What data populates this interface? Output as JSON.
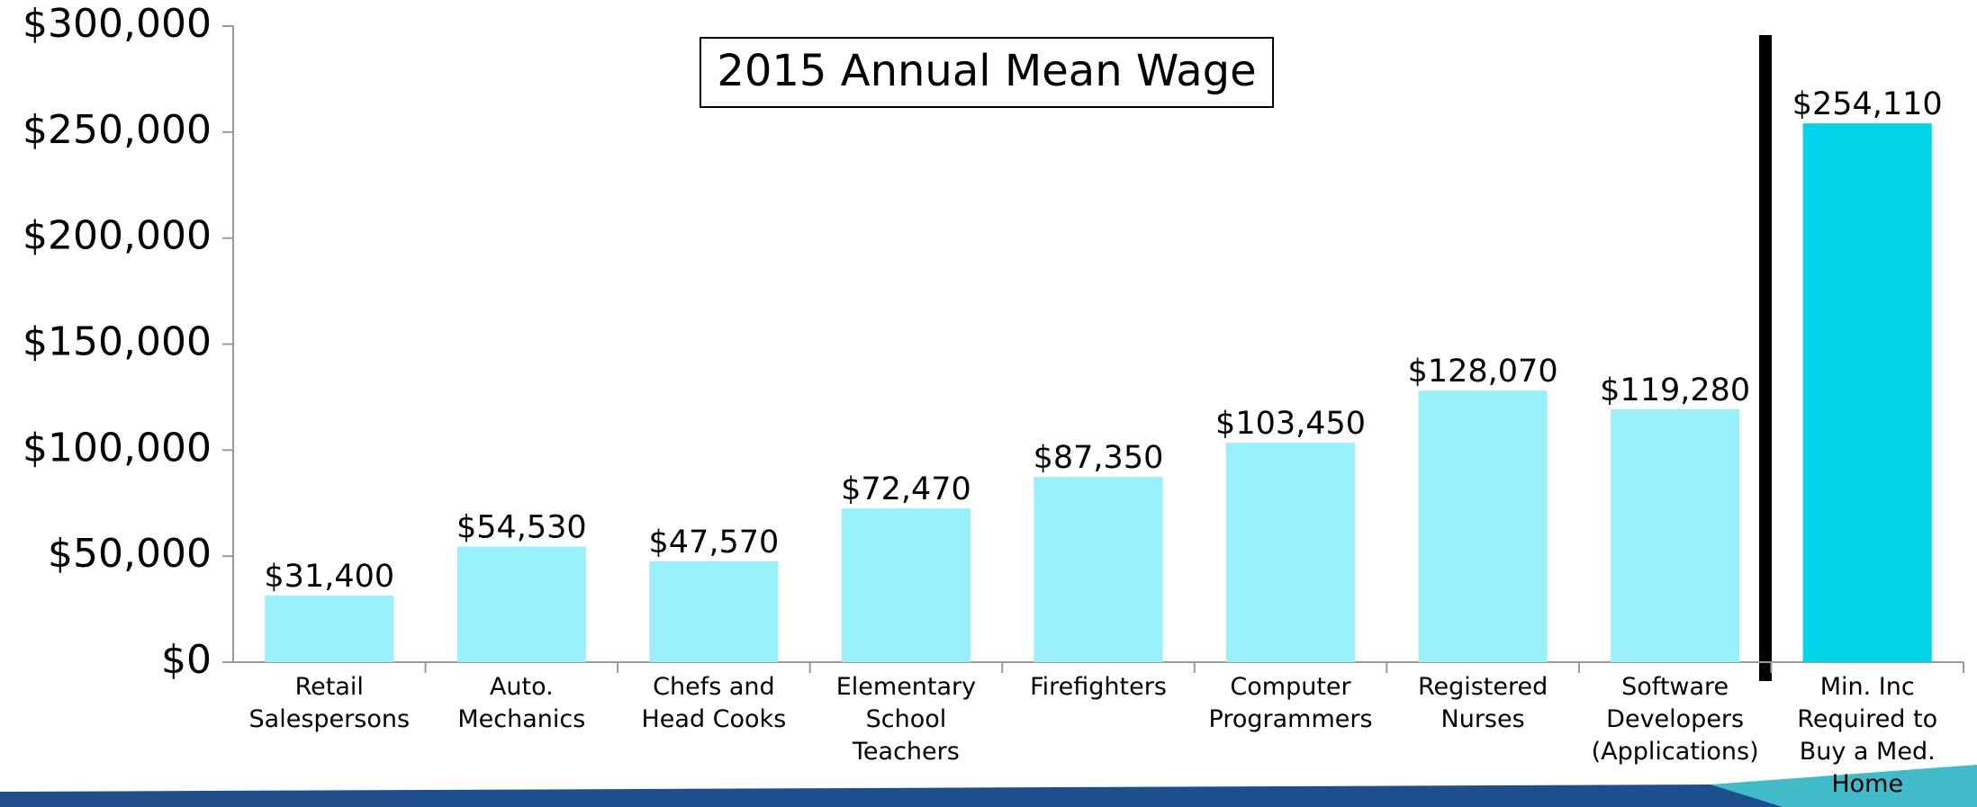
{
  "chart_data": {
    "type": "bar",
    "title": "2015 Annual Mean Wage",
    "categories": [
      "Retail Salespersons",
      "Auto. Mechanics",
      "Chefs and Head Cooks",
      "Elementary School Teachers",
      "Firefighters",
      "Computer Programmers",
      "Registered Nurses",
      "Software Developers (Applications)",
      "Min. Inc Required to Buy a Med. Home"
    ],
    "values": [
      31400,
      54530,
      47570,
      72470,
      87350,
      103450,
      128070,
      119280,
      254110
    ],
    "value_labels": [
      "$31,400",
      "$54,530",
      "$47,570",
      "$72,470",
      "$87,350",
      "$103,450",
      "$128,070",
      "$119,280",
      "$254,110"
    ],
    "colors": [
      "#97f0fa",
      "#97f0fa",
      "#97f0fa",
      "#97f0fa",
      "#97f0fa",
      "#97f0fa",
      "#97f0fa",
      "#97f0fa",
      "#00d4e9"
    ],
    "ylim": [
      0,
      300000
    ],
    "yticks": [
      {
        "value": 0,
        "label": "$0"
      },
      {
        "value": 50000,
        "label": "$50,000"
      },
      {
        "value": 100000,
        "label": "$100,000"
      },
      {
        "value": 150000,
        "label": "$150,000"
      },
      {
        "value": 200000,
        "label": "$200,000"
      },
      {
        "value": 250000,
        "label": "$250,000"
      },
      {
        "value": 300000,
        "label": "$300,000"
      }
    ],
    "grid": false
  }
}
